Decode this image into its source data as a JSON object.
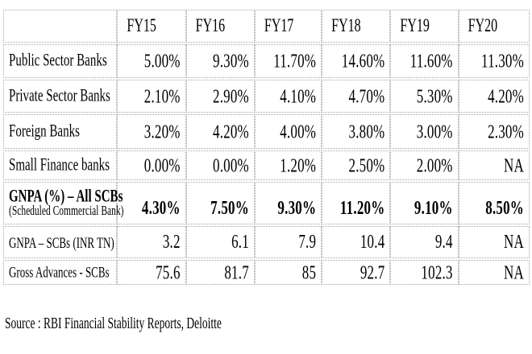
{
  "chart_data": {
    "type": "table",
    "columns": [
      "",
      "FY15",
      "FY16",
      "FY17",
      "FY18",
      "FY19",
      "FY20"
    ],
    "rows": [
      {
        "label": "Public Sector Banks",
        "values": [
          "5.00%",
          "9.30%",
          "11.70%",
          "14.60%",
          "11.60%",
          "11.30%"
        ]
      },
      {
        "label": "Private Sector Banks",
        "values": [
          "2.10%",
          "2.90%",
          "4.10%",
          "4.70%",
          "5.30%",
          "4.20%"
        ]
      },
      {
        "label": "Foreign Banks",
        "values": [
          "3.20%",
          "4.20%",
          "4.00%",
          "3.80%",
          "3.00%",
          "2.30%"
        ]
      },
      {
        "label": "Small Finance banks",
        "values": [
          "0.00%",
          "0.00%",
          "1.20%",
          "2.50%",
          "2.00%",
          "NA"
        ]
      },
      {
        "label": "GNPA (%) – All SCBs",
        "sublabel": "(Scheduled Commercial Bank)",
        "bold": true,
        "values": [
          "4.30%",
          "7.50%",
          "9.30%",
          "11.20%",
          "9.10%",
          "8.50%"
        ]
      },
      {
        "label": "GNPA – SCBs (INR TN)",
        "values": [
          "3.2",
          "6.1",
          "7.9",
          "10.4",
          "9.4",
          "NA"
        ]
      },
      {
        "label": "Gross Advances - SCBs",
        "values": [
          "75.6",
          "81.7",
          "85",
          "92.7",
          "102.3",
          "NA"
        ]
      }
    ],
    "source": "Source : RBI Financial Stability Reports, Deloitte"
  },
  "colors": {
    "border": "#a6a6a6",
    "text": "#000000",
    "background": "#ffffff"
  }
}
